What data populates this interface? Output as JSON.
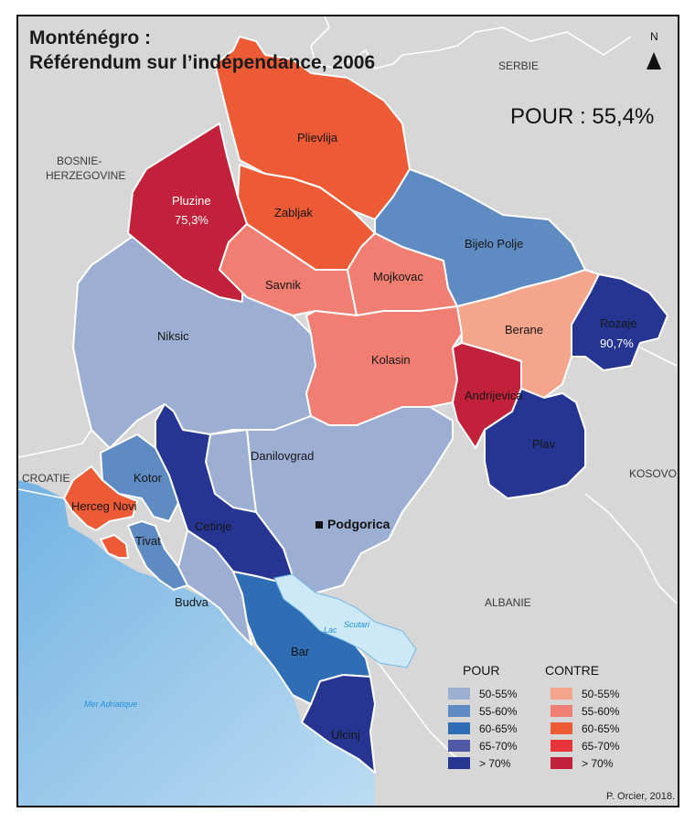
{
  "title": {
    "line1": "Monténégro :",
    "line2": "Référendum sur l’indépendance, 2006"
  },
  "result_total": "POUR : 55,4%",
  "north_arrow": {
    "label": "N",
    "icon": "north-arrow-icon"
  },
  "countries": {
    "serbia": "SERBIE",
    "bosnia_line1": "BOSNIE-",
    "bosnia_line2": "HERZEGOVINE",
    "croatia": "CROATIE",
    "kosovo": "KOSOVO",
    "albania": "ALBANIE"
  },
  "water": {
    "sea": "Mer Adriatique",
    "lake_line1": "Lac",
    "lake_line2": "Scutari"
  },
  "capital": "Podgorica",
  "municipalities": {
    "pljevlja": {
      "name": "Plievlija",
      "category": "contre-60-65"
    },
    "pluzine": {
      "name": "Pluzine",
      "value": "75,3%",
      "category": "contre-gt70"
    },
    "zabljak": {
      "name": "Zabljak",
      "category": "contre-60-65"
    },
    "bijelo": {
      "name": "Bijelo Polje",
      "category": "pour-55-60"
    },
    "savnik": {
      "name": "Savnik",
      "category": "contre-55-60"
    },
    "mojkovac": {
      "name": "Mojkovac",
      "category": "contre-55-60"
    },
    "niksic": {
      "name": "Niksic",
      "category": "pour-50-55"
    },
    "kolasin": {
      "name": "Kolasin",
      "category": "contre-55-60"
    },
    "berane": {
      "name": "Berane",
      "category": "contre-50-55"
    },
    "rozaje": {
      "name": "Rozaje",
      "value": "90,7%",
      "category": "pour-gt70"
    },
    "andrijevica": {
      "name": "Andrijevica",
      "category": "contre-gt70"
    },
    "plav": {
      "name": "Plav",
      "category": "pour-gt70"
    },
    "danilovgrad": {
      "name": "Danilovgrad",
      "category": "pour-50-55"
    },
    "podgorica": {
      "name": "Podgorica",
      "category": "pour-50-55"
    },
    "kotor": {
      "name": "Kotor",
      "category": "pour-55-60"
    },
    "herceg": {
      "name": "Herceg Novi",
      "category": "contre-60-65"
    },
    "tivat": {
      "name": "Tivat",
      "category": "pour-55-60"
    },
    "cetinje": {
      "name": "Cetinje",
      "category": "pour-gt70"
    },
    "budva": {
      "name": "Budva",
      "category": "pour-50-55"
    },
    "bar": {
      "name": "Bar",
      "category": "pour-60-65"
    },
    "ulcinj": {
      "name": "Ulcinj",
      "category": "pour-gt70"
    }
  },
  "legend": {
    "pour_title": "POUR",
    "contre_title": "CONTRE",
    "pour": [
      {
        "label": "50-55%",
        "color": "#9daed3"
      },
      {
        "label": "55-60%",
        "color": "#5e8bc2"
      },
      {
        "label": "60-65%",
        "color": "#2f6db5"
      },
      {
        "label": "65-70%",
        "color": "#5059a8"
      },
      {
        "label": "> 70%",
        "color": "#253591"
      }
    ],
    "contre": [
      {
        "label": "50-55%",
        "color": "#f5a58c"
      },
      {
        "label": "55-60%",
        "color": "#f07e72"
      },
      {
        "label": "60-65%",
        "color": "#ec5b36"
      },
      {
        "label": "65-70%",
        "color": "#e8333a"
      },
      {
        "label": "> 70%",
        "color": "#c1213a"
      }
    ]
  },
  "colors": {
    "land": "#d7d7d7",
    "sea": "#8cc3e8",
    "lake": "#cde9f7",
    "border": "#ffffff"
  },
  "credit": "P. Orcier, 2018."
}
